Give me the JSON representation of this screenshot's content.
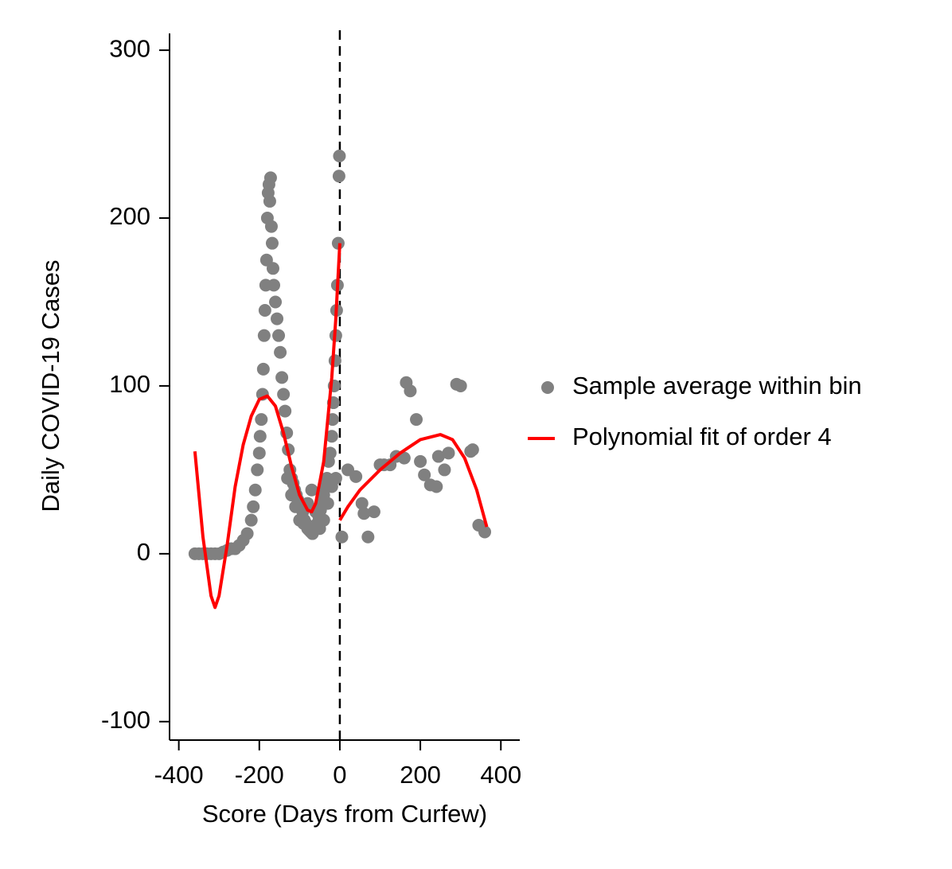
{
  "chart_data": {
    "type": "scatter",
    "x_label": "Score (Days from Curfew)",
    "y_label": "Daily COVID-19 Cases",
    "xlim": [
      -423,
      447
    ],
    "ylim": [
      -111,
      310
    ],
    "xticks": [
      -400,
      -200,
      0,
      200,
      400
    ],
    "yticks": [
      -100,
      0,
      100,
      200,
      300
    ],
    "vline": 0,
    "legend": "right",
    "series": [
      {
        "name": "Sample average within bin",
        "color": "#808080",
        "kind": "scatter",
        "x": [
          -360,
          -350,
          -340,
          -330,
          -320,
          -310,
          -300,
          -290,
          -280,
          -270,
          -260,
          -250,
          -240,
          -230,
          -220,
          -215,
          -210,
          -205,
          -200,
          -198,
          -195,
          -192,
          -190,
          -188,
          -186,
          -184,
          -182,
          -180,
          -178,
          -176,
          -174,
          -172,
          -170,
          -168,
          -166,
          -164,
          -160,
          -156,
          -152,
          -148,
          -144,
          -140,
          -136,
          -132,
          -128,
          -124,
          -120,
          -116,
          -112,
          -108,
          -104,
          -100,
          -96,
          -92,
          -88,
          -84,
          -80,
          -76,
          -72,
          -68,
          -64,
          -60,
          -56,
          -52,
          -48,
          -44,
          -40,
          -36,
          -32,
          -28,
          -24,
          -20,
          -18,
          -16,
          -14,
          -12,
          -10,
          -8,
          -6,
          -4,
          -2,
          -1,
          -130,
          -120,
          -110,
          -100,
          -90,
          -80,
          -70,
          -60,
          -50,
          -40,
          -30,
          -20,
          -10,
          5,
          20,
          40,
          55,
          60,
          70,
          85,
          100,
          110,
          125,
          140,
          160,
          165,
          175,
          190,
          200,
          210,
          225,
          240,
          245,
          260,
          270,
          290,
          300,
          325,
          330,
          345,
          360
        ],
        "values": [
          0,
          0,
          0,
          0,
          0,
          0,
          0,
          1,
          2,
          3,
          3,
          5,
          8,
          12,
          20,
          28,
          38,
          50,
          60,
          70,
          80,
          95,
          110,
          130,
          145,
          160,
          175,
          200,
          215,
          220,
          210,
          224,
          195,
          185,
          170,
          160,
          150,
          140,
          130,
          120,
          105,
          95,
          85,
          72,
          62,
          50,
          45,
          42,
          38,
          35,
          32,
          30,
          28,
          25,
          20,
          18,
          15,
          14,
          13,
          12,
          14,
          16,
          18,
          22,
          26,
          30,
          35,
          40,
          45,
          55,
          60,
          70,
          80,
          90,
          100,
          115,
          130,
          145,
          160,
          185,
          225,
          237,
          45,
          35,
          28,
          20,
          18,
          30,
          38,
          25,
          15,
          20,
          30,
          40,
          45,
          10,
          50,
          46,
          30,
          24,
          10,
          25,
          53,
          53,
          53,
          58,
          57,
          102,
          97,
          80,
          55,
          47,
          41,
          40,
          58,
          50,
          60,
          101,
          100,
          61,
          62,
          17,
          13
        ]
      },
      {
        "name": "Polynomial fit of order 4",
        "color": "#ff0000",
        "kind": "line",
        "x": [
          -360,
          -340,
          -320,
          -310,
          -300,
          -280,
          -260,
          -240,
          -220,
          -200,
          -180,
          -160,
          -140,
          -120,
          -100,
          -80,
          -70,
          -60,
          -40,
          -20,
          -10,
          0,
          null,
          0,
          20,
          50,
          100,
          150,
          200,
          250,
          280,
          310,
          340,
          365
        ],
        "values": [
          61,
          10,
          -25,
          -32,
          -25,
          5,
          40,
          65,
          82,
          92,
          94,
          88,
          72,
          52,
          35,
          26,
          25,
          30,
          55,
          105,
          140,
          185,
          null,
          20,
          28,
          38,
          50,
          60,
          68,
          71,
          68,
          57,
          38,
          16
        ]
      }
    ]
  }
}
